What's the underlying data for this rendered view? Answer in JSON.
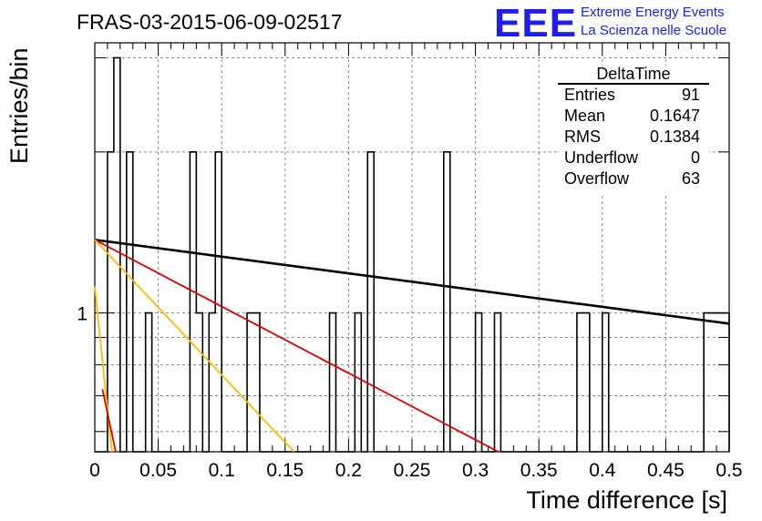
{
  "header": {
    "title": "FRAS-03-2015-06-09-02517",
    "logo_text": "EEE",
    "logo_line1": "Extreme Energy Events",
    "logo_line2": "La Scienza nelle Scuole",
    "logo_color": "#1e1ef0"
  },
  "stats_box": {
    "title": "DeltaTime",
    "rows": [
      {
        "label": "Entries",
        "value": "91"
      },
      {
        "label": "Mean",
        "value": "0.1647"
      },
      {
        "label": "RMS",
        "value": "0.1384"
      },
      {
        "label": "Underflow",
        "value": "0"
      },
      {
        "label": "Overflow",
        "value": "63"
      }
    ]
  },
  "chart_data": {
    "type": "histogram",
    "title": "FRAS-03-2015-06-09-02517",
    "xlabel": "Time difference [s]",
    "ylabel": "Entries/bin",
    "x_scale": "linear",
    "y_scale": "log",
    "xlim": [
      0,
      0.5
    ],
    "ylim": [
      0.55,
      3.2
    ],
    "grid": true,
    "x_ticks": [
      "0",
      "0.05",
      "0.1",
      "0.15",
      "0.2",
      "0.25",
      "0.3",
      "0.35",
      "0.4",
      "0.45",
      "0.5"
    ],
    "y_ticks": [
      "1"
    ],
    "bin_width": 0.005,
    "bins": [
      {
        "x": 0.01,
        "count": 2
      },
      {
        "x": 0.015,
        "count": 3
      },
      {
        "x": 0.025,
        "count": 2
      },
      {
        "x": 0.04,
        "count": 1
      },
      {
        "x": 0.075,
        "count": 2
      },
      {
        "x": 0.08,
        "count": 1
      },
      {
        "x": 0.09,
        "count": 1
      },
      {
        "x": 0.095,
        "count": 2
      },
      {
        "x": 0.12,
        "count": 1
      },
      {
        "x": 0.125,
        "count": 1
      },
      {
        "x": 0.185,
        "count": 1
      },
      {
        "x": 0.205,
        "count": 1
      },
      {
        "x": 0.215,
        "count": 2
      },
      {
        "x": 0.275,
        "count": 2
      },
      {
        "x": 0.3,
        "count": 1
      },
      {
        "x": 0.315,
        "count": 1
      },
      {
        "x": 0.38,
        "count": 1
      },
      {
        "x": 0.385,
        "count": 1
      },
      {
        "x": 0.4,
        "count": 1
      },
      {
        "x": 0.48,
        "count": 1
      },
      {
        "x": 0.485,
        "count": 1
      },
      {
        "x": 0.49,
        "count": 1
      },
      {
        "x": 0.495,
        "count": 1
      }
    ],
    "fit_lines": [
      {
        "color": "#000000",
        "points": [
          [
            0,
            1.37
          ],
          [
            0.5,
            0.955
          ]
        ]
      },
      {
        "color": "#dd0000",
        "points": [
          [
            0,
            1.37
          ],
          [
            0.318,
            0.55
          ]
        ]
      },
      {
        "color": "#ffbb00",
        "points": [
          [
            0,
            1.37
          ],
          [
            0.157,
            0.55
          ]
        ]
      },
      {
        "color": "#ffbb00",
        "points": [
          [
            0,
            1.12
          ],
          [
            0.0135,
            0.55
          ]
        ]
      },
      {
        "color": "#dd0000",
        "points": [
          [
            0.006,
            0.72
          ],
          [
            0.0165,
            0.55
          ]
        ]
      }
    ]
  }
}
